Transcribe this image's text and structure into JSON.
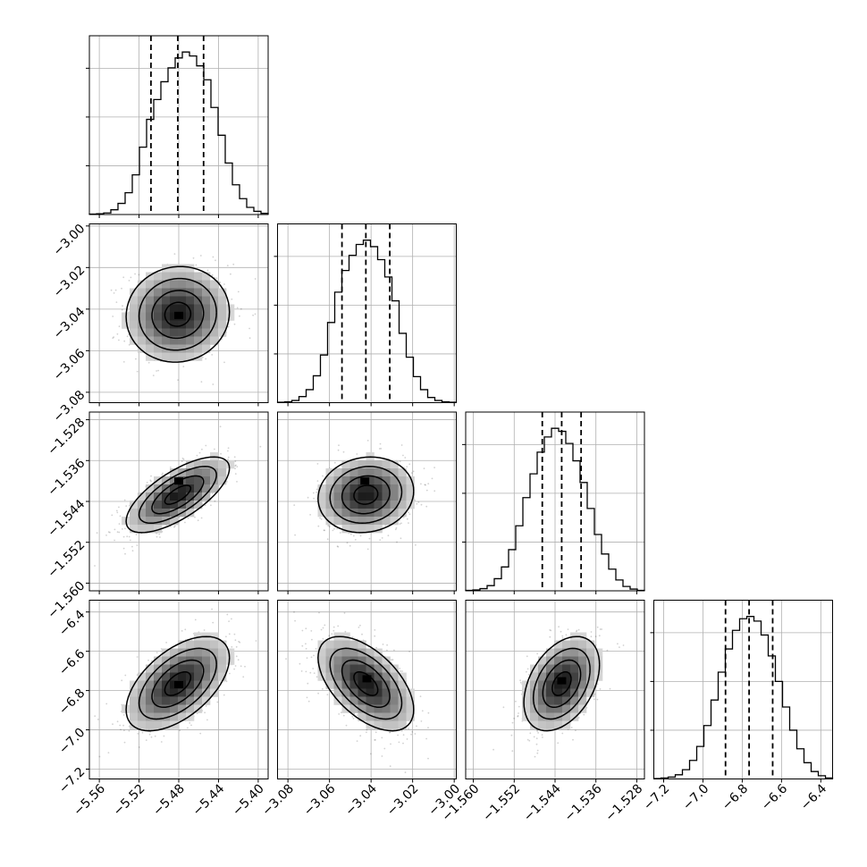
{
  "chart_data": {
    "type": "corner",
    "parameters": [
      {
        "range": [
          -5.57,
          -5.39
        ],
        "ticks": [
          -5.56,
          -5.52,
          -5.48,
          -5.44,
          -5.4
        ],
        "tick_labels": [
          "−5.56",
          "−5.52",
          "−5.48",
          "−5.44",
          "−5.40"
        ],
        "quantiles": [
          -5.508,
          -5.481,
          -5.455
        ],
        "mean": -5.481,
        "sd": 0.026
      },
      {
        "range": [
          -3.085,
          -2.999
        ],
        "ticks": [
          -3.08,
          -3.06,
          -3.04,
          -3.02,
          -3.0
        ],
        "tick_labels": [
          "−3.08",
          "−3.06",
          "−3.04",
          "−3.02",
          "−3.00"
        ],
        "quantiles": [
          -3.054,
          -3.0425,
          -3.031
        ],
        "mean": -3.0425,
        "sd": 0.0115
      },
      {
        "range": [
          -1.5615,
          -1.5265
        ],
        "ticks": [
          -1.56,
          -1.552,
          -1.544,
          -1.536,
          -1.528
        ],
        "tick_labels": [
          "−1.560",
          "−1.552",
          "−1.544",
          "−1.536",
          "−1.528"
        ],
        "quantiles": [
          -1.5465,
          -1.5427,
          -1.5389
        ],
        "mean": -1.5427,
        "sd": 0.0037
      },
      {
        "range": [
          -7.25,
          -6.34
        ],
        "ticks": [
          -7.2,
          -7.0,
          -6.8,
          -6.6,
          -6.4
        ],
        "tick_labels": [
          "−7.2",
          "−7.0",
          "−6.8",
          "−6.6",
          "−6.4"
        ],
        "quantiles": [
          -6.885,
          -6.765,
          -6.645
        ],
        "mean": -6.765,
        "sd": 0.12
      }
    ],
    "correlations": {
      "1,0": 0.05,
      "2,0": 0.7,
      "2,1": 0.1,
      "3,0": 0.55,
      "3,1": -0.55,
      "3,2": 0.4
    },
    "histograms": [
      [
        1,
        2,
        4,
        12,
        28,
        55,
        100,
        170,
        240,
        290,
        335,
        370,
        395,
        410,
        400,
        375,
        340,
        270,
        200,
        130,
        75,
        40,
        18,
        8,
        3
      ],
      [
        1,
        2,
        5,
        14,
        30,
        62,
        110,
        185,
        255,
        305,
        340,
        365,
        375,
        360,
        330,
        290,
        235,
        160,
        105,
        60,
        30,
        12,
        5,
        2,
        1
      ],
      [
        1,
        2,
        5,
        12,
        28,
        55,
        95,
        150,
        215,
        270,
        320,
        355,
        375,
        368,
        340,
        300,
        250,
        190,
        130,
        85,
        50,
        25,
        10,
        4,
        1
      ],
      [
        1,
        2,
        4,
        9,
        20,
        40,
        70,
        115,
        170,
        230,
        280,
        320,
        345,
        350,
        340,
        310,
        265,
        210,
        155,
        105,
        65,
        35,
        16,
        7,
        2
      ]
    ],
    "grid": true,
    "xlabel": "",
    "ylabel": ""
  }
}
